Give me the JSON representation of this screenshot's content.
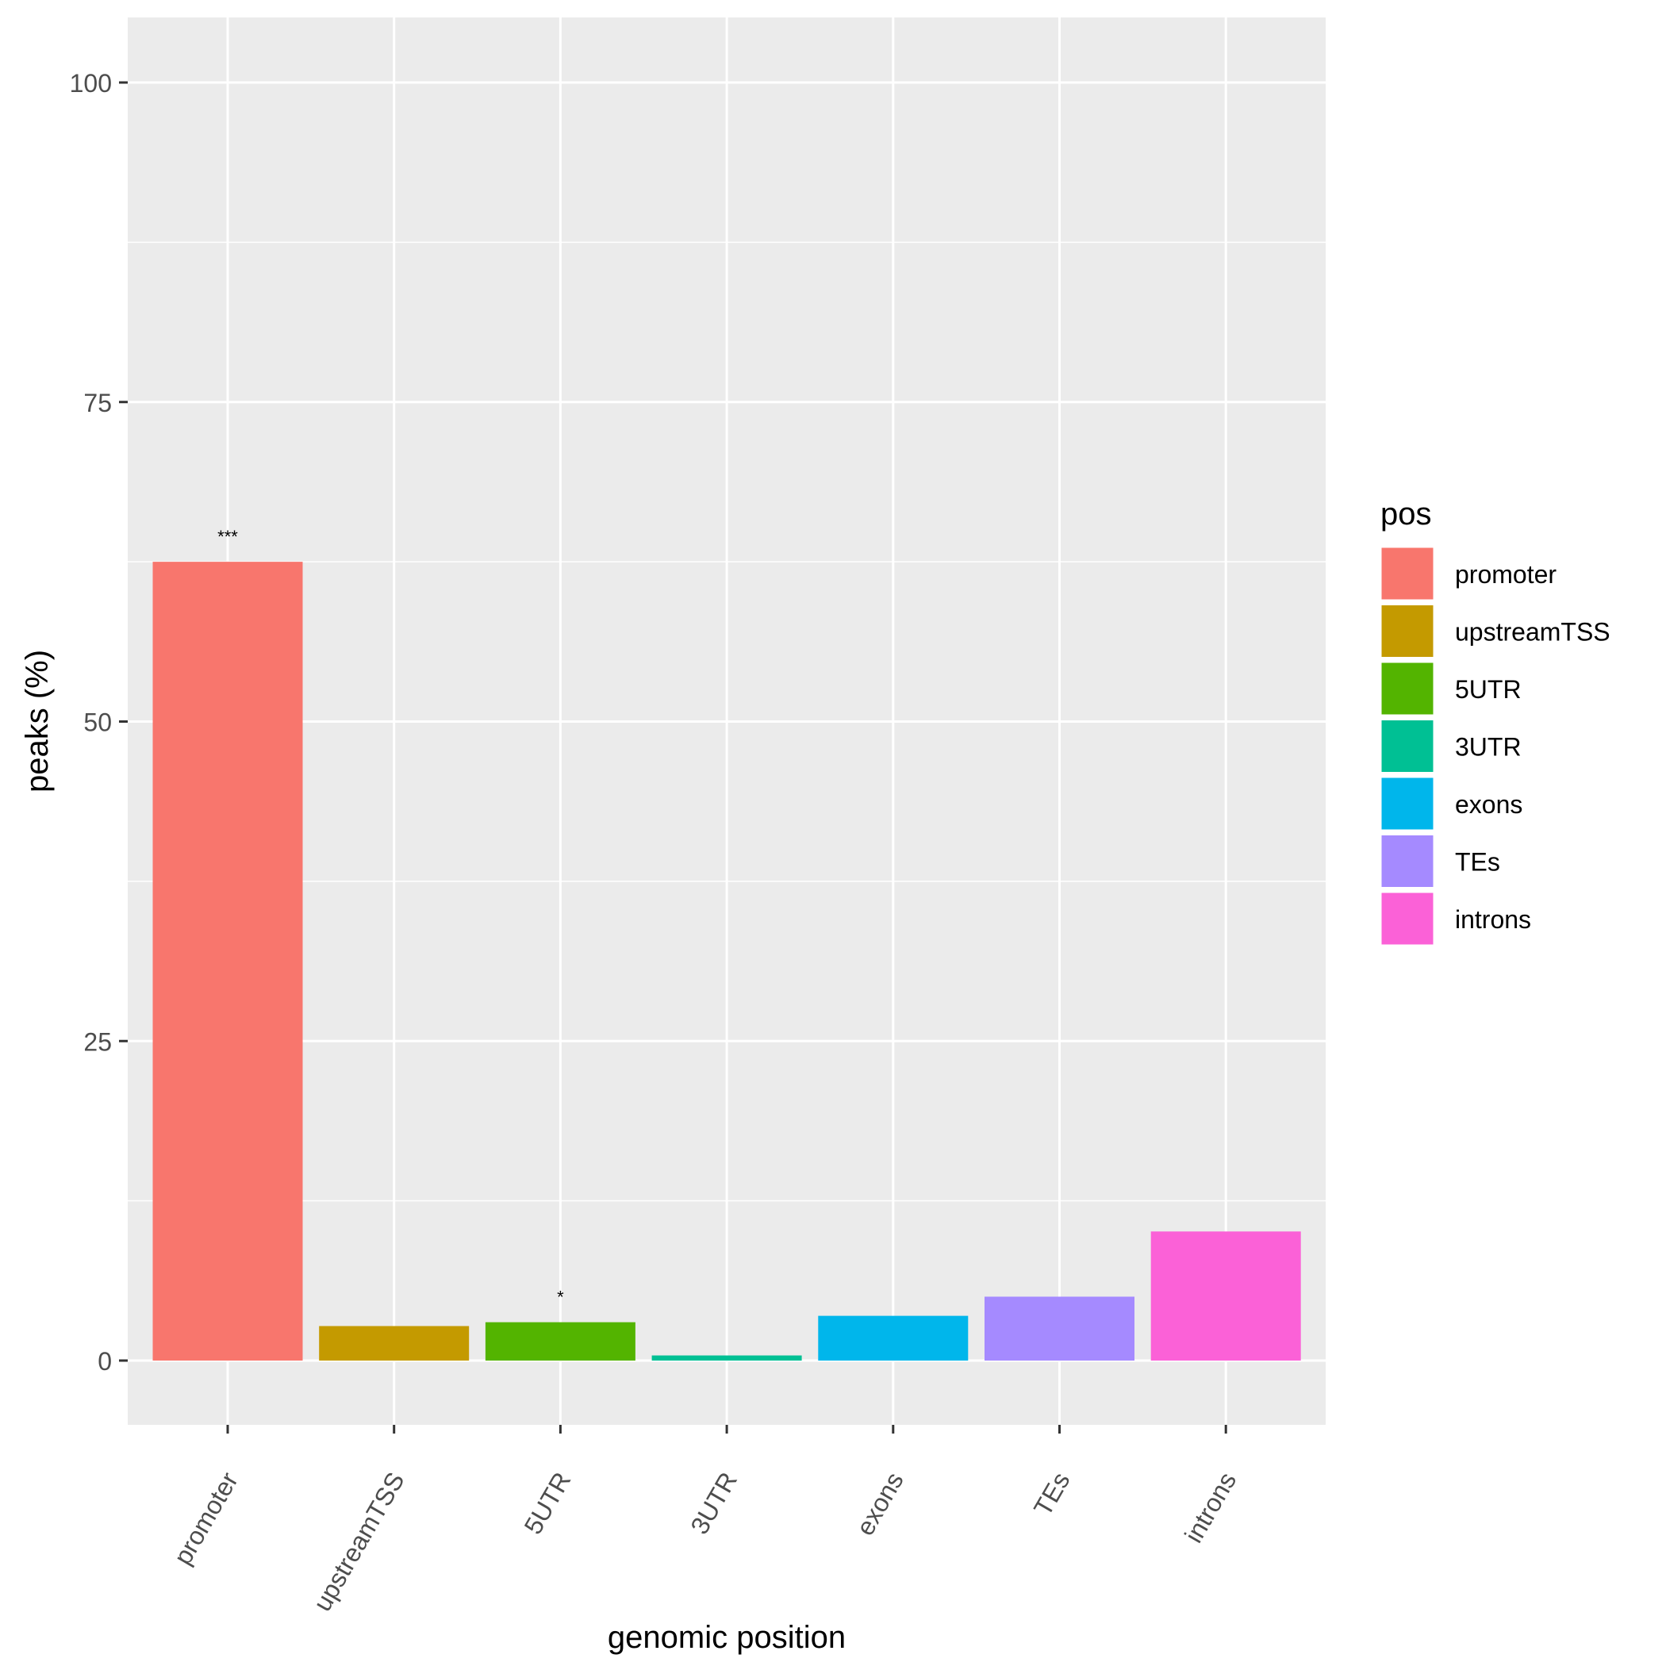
{
  "chart_data": {
    "type": "bar",
    "categories": [
      "promoter",
      "upstreamTSS",
      "5UTR",
      "3UTR",
      "exons",
      "TEs",
      "introns"
    ],
    "values": [
      62.5,
      2.7,
      3.0,
      0.4,
      3.5,
      5.0,
      10.1
    ],
    "colors": [
      "#F8766D",
      "#C49A00",
      "#53B400",
      "#00C094",
      "#00B6EB",
      "#A58AFF",
      "#FB61D7"
    ],
    "annotations": [
      "***",
      "",
      "*",
      "",
      "",
      "",
      ""
    ],
    "xlabel": "genomic position",
    "ylabel": "peaks (%)",
    "ylim": [
      -5,
      105
    ],
    "yticks": [
      0,
      25,
      50,
      75,
      100
    ],
    "grid": true,
    "legend": {
      "title": "pos",
      "placement": "right",
      "entries": [
        "promoter",
        "upstreamTSS",
        "5UTR",
        "3UTR",
        "exons",
        "TEs",
        "introns"
      ]
    }
  }
}
